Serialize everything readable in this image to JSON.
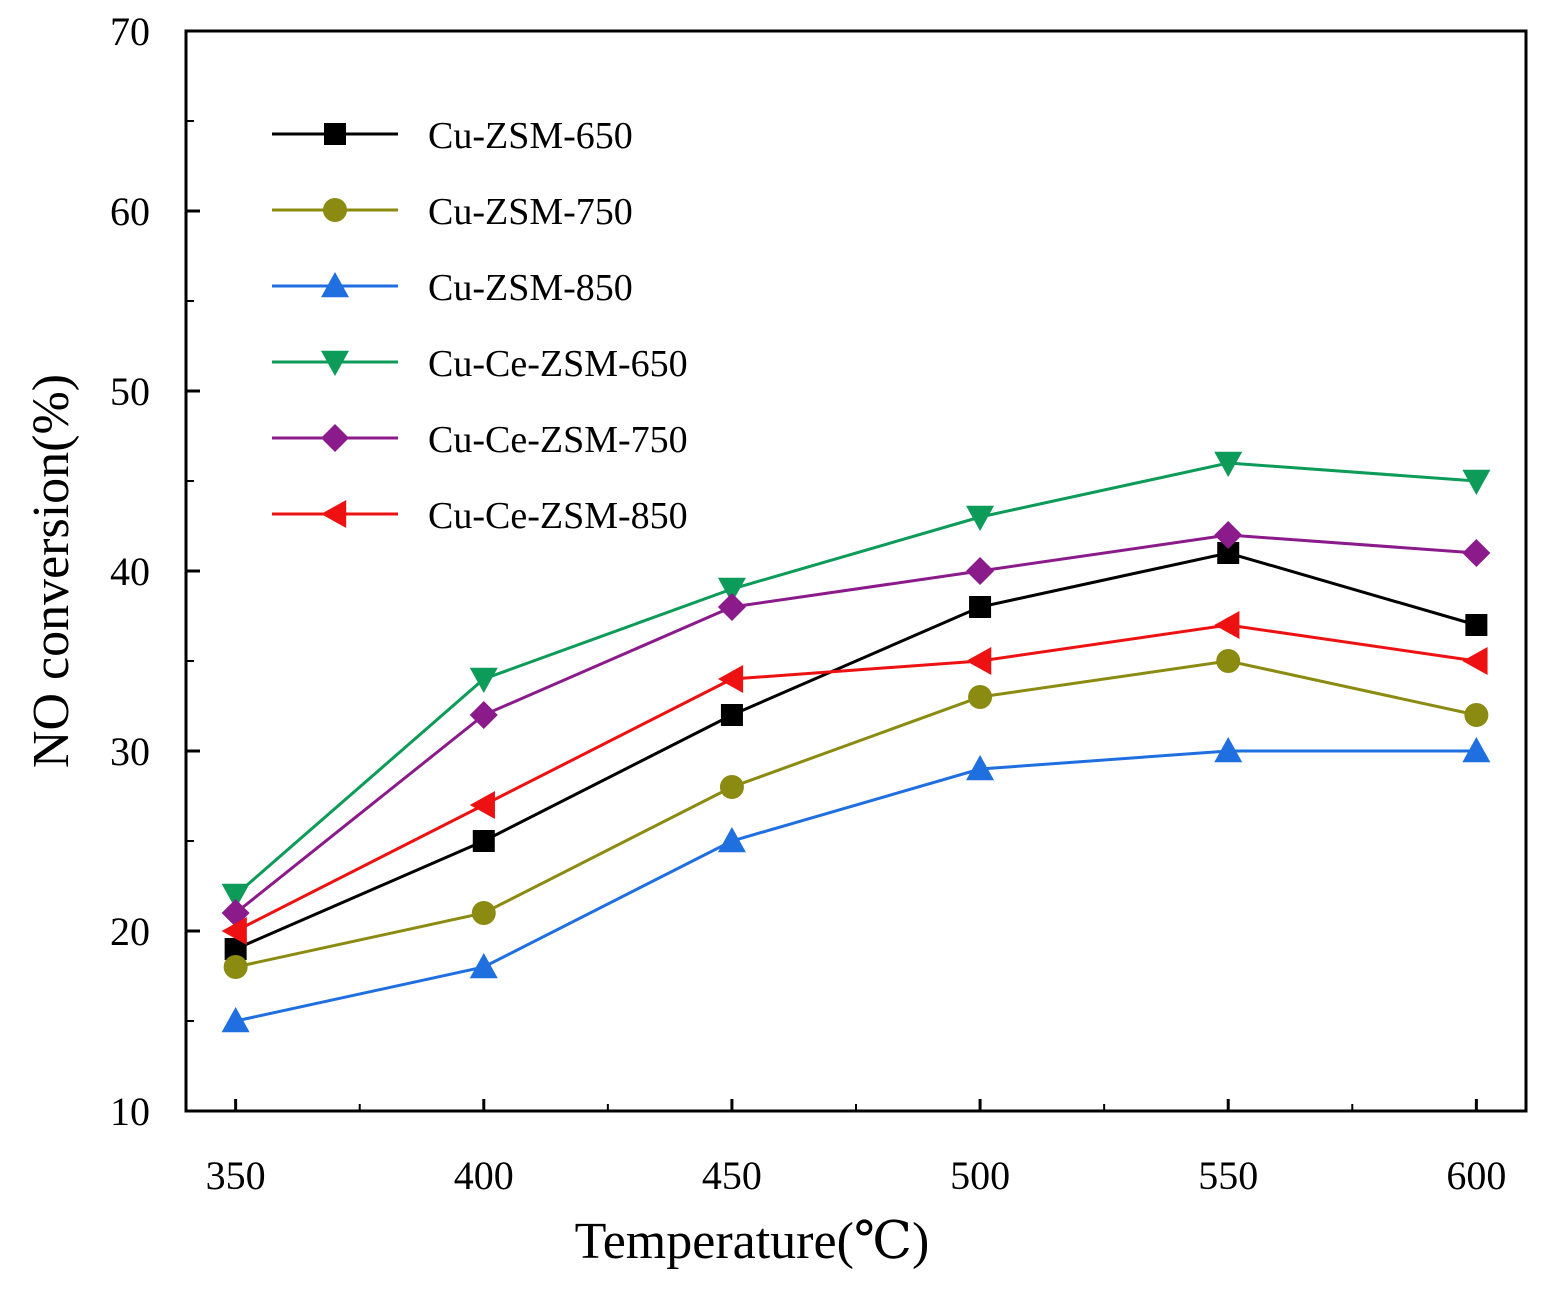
{
  "chart_data": {
    "type": "line",
    "title": "",
    "xlabel": "Temperature(℃)",
    "ylabel": "NO conversion(%)",
    "x": [
      350,
      400,
      450,
      500,
      550,
      600
    ],
    "xlim": [
      340,
      610
    ],
    "ylim": [
      10,
      70
    ],
    "x_ticks": [
      "350",
      "400",
      "450",
      "500",
      "550",
      "600"
    ],
    "y_ticks": [
      "10",
      "20",
      "30",
      "40",
      "50",
      "60",
      "70"
    ],
    "grid": false,
    "legend_position": "top-left",
    "series": [
      {
        "name": "Cu-ZSM-650",
        "color": "#000000",
        "marker": "square",
        "values": [
          19,
          25,
          32,
          38,
          41,
          37
        ]
      },
      {
        "name": "Cu-ZSM-750",
        "color": "#8b8b12",
        "marker": "circle",
        "values": [
          18,
          21,
          28,
          33,
          35,
          32
        ]
      },
      {
        "name": "Cu-ZSM-850",
        "color": "#1f6fe0",
        "marker": "triangle-up",
        "values": [
          15,
          18,
          25,
          29,
          30,
          30
        ]
      },
      {
        "name": "Cu-Ce-ZSM-650",
        "color": "#0c9b58",
        "marker": "triangle-down",
        "values": [
          22,
          34,
          39,
          43,
          46,
          45
        ]
      },
      {
        "name": "Cu-Ce-ZSM-750",
        "color": "#8b1a8b",
        "marker": "diamond",
        "values": [
          21,
          32,
          38,
          40,
          42,
          41
        ]
      },
      {
        "name": "Cu-Ce-ZSM-850",
        "color": "#ee1111",
        "marker": "triangle-left",
        "values": [
          20,
          27,
          34,
          35,
          37,
          35
        ]
      }
    ]
  }
}
